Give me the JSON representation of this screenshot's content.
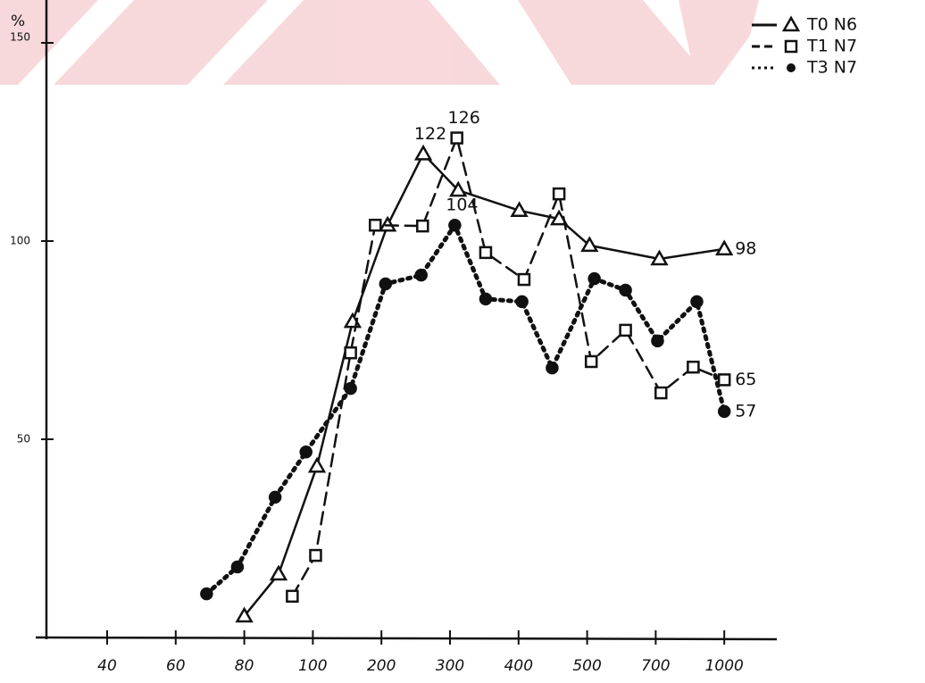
{
  "chart_data": {
    "type": "line",
    "y_label": "%",
    "xticks": [
      40,
      60,
      80,
      100,
      200,
      300,
      400,
      500,
      700,
      1000
    ],
    "xlim": [
      30,
      1100
    ],
    "x_scale": "even-ticks",
    "ylim": [
      0,
      155
    ],
    "yticks": [
      50,
      100,
      150
    ],
    "grid": false,
    "legend": "upper right",
    "series": [
      {
        "name": "T0 N6",
        "color": "#111111",
        "marker": "triangle",
        "dash": "solid",
        "x": [
          80,
          90,
          106,
          158,
          209,
          261,
          312,
          401,
          459,
          507,
          716,
          1000
        ],
        "values": [
          5.4,
          16,
          43.2,
          79.7,
          104,
          122,
          112.8,
          107.7,
          105.6,
          98.9,
          95.5,
          98
        ],
        "value_labels": [
          null,
          null,
          null,
          null,
          null,
          "122",
          null,
          null,
          null,
          null,
          null,
          "98"
        ]
      },
      {
        "name": "T1 N7",
        "color": "#111111",
        "marker": "square",
        "dash": "dashed",
        "x": [
          94,
          104,
          155,
          191,
          260,
          310,
          352,
          408,
          459,
          512,
          612,
          723,
          864,
          1000
        ],
        "values": [
          10.4,
          20.7,
          71.8,
          104,
          103.8,
          126,
          97.1,
          90.3,
          111.9,
          69.6,
          77.5,
          61.7,
          68.2,
          65
        ],
        "value_labels": [
          null,
          null,
          null,
          null,
          null,
          "126",
          null,
          null,
          null,
          null,
          null,
          null,
          null,
          "65"
        ]
      },
      {
        "name": "T3 N7",
        "color": "#111111",
        "marker": "circle",
        "dash": "dotted",
        "x": [
          69,
          78,
          89,
          98,
          155,
          206,
          258,
          307,
          352,
          405,
          449,
          521,
          612,
          708,
          880,
          1000
        ],
        "values": [
          11,
          17.8,
          35.4,
          46.8,
          62.8,
          89.2,
          91.4,
          104,
          85.4,
          84.7,
          68,
          90.5,
          87.6,
          74.8,
          84.7,
          57
        ],
        "value_labels": [
          null,
          null,
          null,
          null,
          null,
          null,
          null,
          "104",
          null,
          null,
          null,
          null,
          null,
          null,
          null,
          "57"
        ]
      }
    ]
  }
}
